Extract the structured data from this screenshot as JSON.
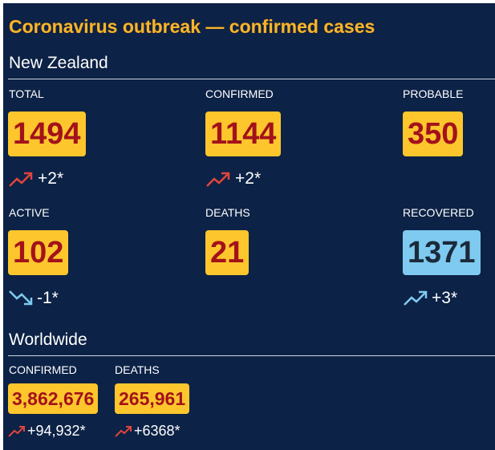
{
  "title": "Coronavirus outbreak — confirmed cases",
  "new_zealand": {
    "heading": "New Zealand",
    "stats": [
      {
        "label": "TOTAL",
        "value": "1494",
        "change": "+2*"
      },
      {
        "label": "CONFIRMED",
        "value": "1144",
        "change": "+2*"
      },
      {
        "label": "PROBABLE",
        "value": "350"
      },
      {
        "label": "ACTIVE",
        "value": "102",
        "change": "-1*"
      },
      {
        "label": "DEATHS",
        "value": "21"
      },
      {
        "label": "RECOVERED",
        "value": "1371",
        "change": "+3*"
      }
    ]
  },
  "worldwide": {
    "heading": "Worldwide",
    "stats": [
      {
        "label": "CONFIRMED",
        "value": "3,862,676",
        "change": "+94,932*"
      },
      {
        "label": "DEATHS",
        "value": "265,961",
        "change": "+6368*"
      }
    ]
  }
}
